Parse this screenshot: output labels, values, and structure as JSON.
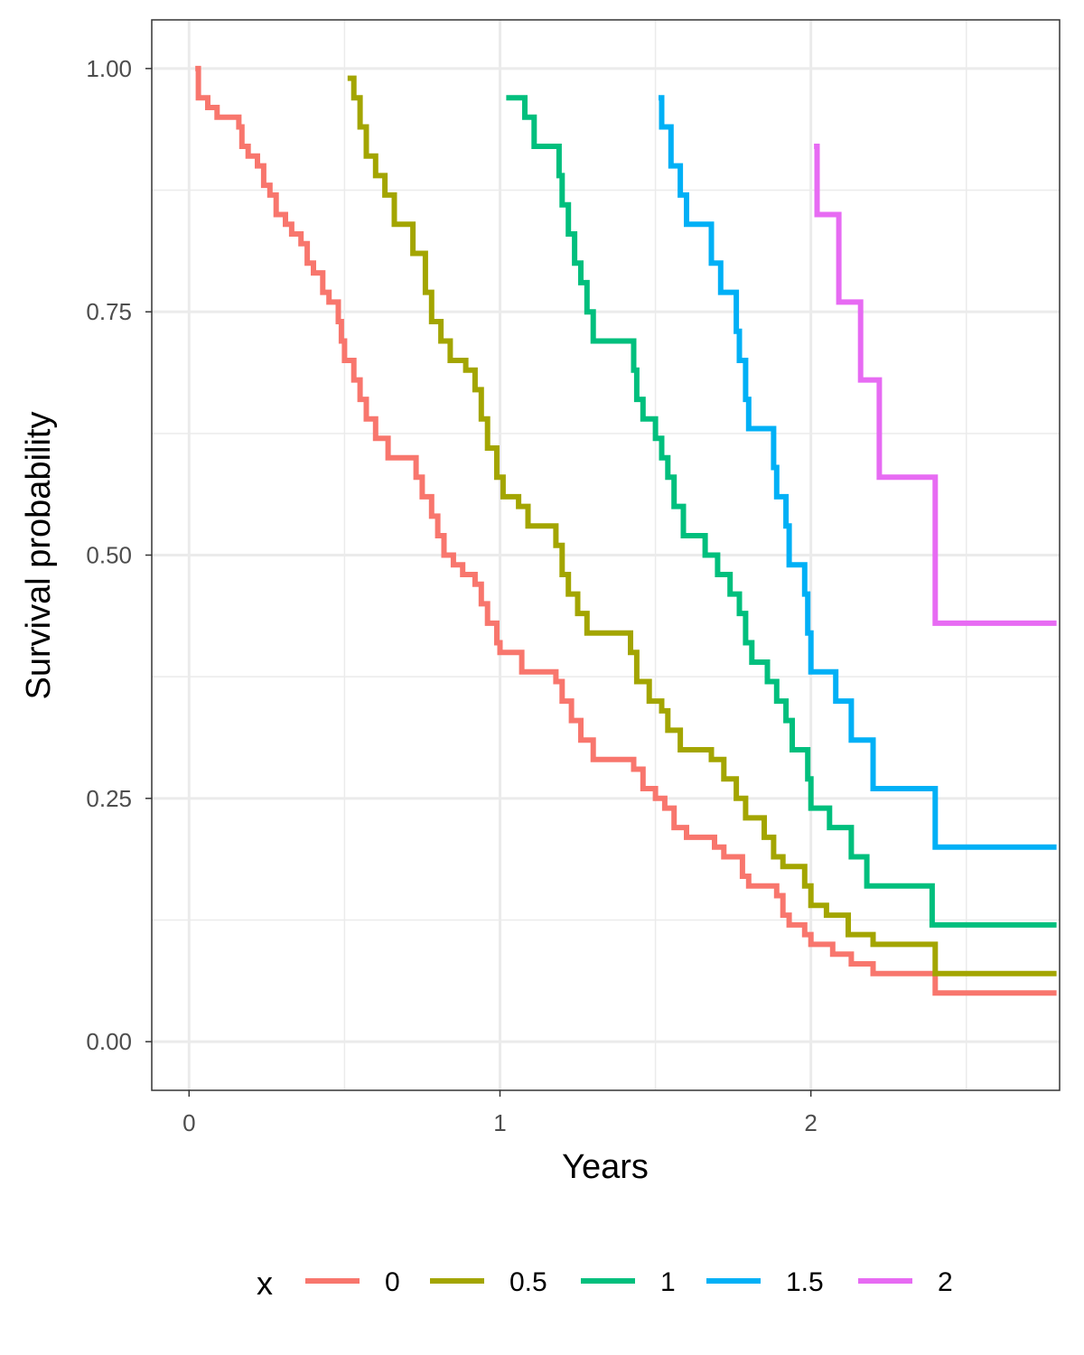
{
  "chart_data": {
    "type": "line",
    "step": true,
    "title": "",
    "xlabel": "Years",
    "ylabel": "Survival probability",
    "xlim": [
      -0.12,
      2.8
    ],
    "ylim": [
      -0.05,
      1.05
    ],
    "x_ticks": [
      0,
      1,
      2
    ],
    "x_tick_labels": [
      "0",
      "1",
      "2"
    ],
    "y_ticks": [
      0,
      0.25,
      0.5,
      0.75,
      1
    ],
    "y_tick_labels": [
      "0.00",
      "0.25",
      "0.50",
      "0.75",
      "1.00"
    ],
    "grid": true,
    "legend": {
      "title": "x",
      "position": "bottom"
    },
    "series": [
      {
        "name": "0",
        "color": "#F8766D",
        "points": [
          [
            0.02,
            1.0
          ],
          [
            0.03,
            0.97
          ],
          [
            0.06,
            0.96
          ],
          [
            0.09,
            0.95
          ],
          [
            0.16,
            0.94
          ],
          [
            0.17,
            0.92
          ],
          [
            0.19,
            0.91
          ],
          [
            0.22,
            0.9
          ],
          [
            0.24,
            0.88
          ],
          [
            0.26,
            0.87
          ],
          [
            0.28,
            0.85
          ],
          [
            0.31,
            0.84
          ],
          [
            0.33,
            0.83
          ],
          [
            0.36,
            0.82
          ],
          [
            0.38,
            0.8
          ],
          [
            0.4,
            0.79
          ],
          [
            0.43,
            0.77
          ],
          [
            0.45,
            0.76
          ],
          [
            0.48,
            0.74
          ],
          [
            0.49,
            0.72
          ],
          [
            0.5,
            0.7
          ],
          [
            0.53,
            0.68
          ],
          [
            0.55,
            0.66
          ],
          [
            0.57,
            0.64
          ],
          [
            0.6,
            0.62
          ],
          [
            0.64,
            0.6
          ],
          [
            0.67,
            0.6
          ],
          [
            0.73,
            0.58
          ],
          [
            0.75,
            0.56
          ],
          [
            0.78,
            0.54
          ],
          [
            0.8,
            0.52
          ],
          [
            0.82,
            0.5
          ],
          [
            0.85,
            0.49
          ],
          [
            0.88,
            0.48
          ],
          [
            0.92,
            0.47
          ],
          [
            0.94,
            0.45
          ],
          [
            0.96,
            0.43
          ],
          [
            0.99,
            0.41
          ],
          [
            1.0,
            0.4
          ],
          [
            1.07,
            0.38
          ],
          [
            1.18,
            0.37
          ],
          [
            1.2,
            0.35
          ],
          [
            1.23,
            0.33
          ],
          [
            1.26,
            0.31
          ],
          [
            1.3,
            0.29
          ],
          [
            1.43,
            0.28
          ],
          [
            1.46,
            0.26
          ],
          [
            1.5,
            0.25
          ],
          [
            1.53,
            0.24
          ],
          [
            1.56,
            0.22
          ],
          [
            1.6,
            0.21
          ],
          [
            1.69,
            0.2
          ],
          [
            1.72,
            0.19
          ],
          [
            1.78,
            0.17
          ],
          [
            1.8,
            0.16
          ],
          [
            1.89,
            0.15
          ],
          [
            1.91,
            0.13
          ],
          [
            1.93,
            0.12
          ],
          [
            1.98,
            0.11
          ],
          [
            2.0,
            0.1
          ],
          [
            2.07,
            0.09
          ],
          [
            2.13,
            0.08
          ],
          [
            2.2,
            0.07
          ],
          [
            2.4,
            0.05
          ],
          [
            2.79,
            0.05
          ]
        ]
      },
      {
        "name": "0.5",
        "color": "#A3A500",
        "points": [
          [
            0.51,
            0.99
          ],
          [
            0.53,
            0.97
          ],
          [
            0.55,
            0.94
          ],
          [
            0.57,
            0.91
          ],
          [
            0.6,
            0.89
          ],
          [
            0.63,
            0.87
          ],
          [
            0.66,
            0.84
          ],
          [
            0.72,
            0.81
          ],
          [
            0.76,
            0.77
          ],
          [
            0.78,
            0.74
          ],
          [
            0.81,
            0.72
          ],
          [
            0.84,
            0.7
          ],
          [
            0.89,
            0.69
          ],
          [
            0.92,
            0.67
          ],
          [
            0.94,
            0.64
          ],
          [
            0.96,
            0.61
          ],
          [
            0.99,
            0.58
          ],
          [
            1.01,
            0.56
          ],
          [
            1.06,
            0.55
          ],
          [
            1.09,
            0.53
          ],
          [
            1.18,
            0.51
          ],
          [
            1.2,
            0.48
          ],
          [
            1.22,
            0.46
          ],
          [
            1.25,
            0.44
          ],
          [
            1.28,
            0.42
          ],
          [
            1.42,
            0.4
          ],
          [
            1.44,
            0.37
          ],
          [
            1.48,
            0.35
          ],
          [
            1.52,
            0.34
          ],
          [
            1.54,
            0.32
          ],
          [
            1.58,
            0.3
          ],
          [
            1.68,
            0.29
          ],
          [
            1.72,
            0.27
          ],
          [
            1.76,
            0.25
          ],
          [
            1.79,
            0.23
          ],
          [
            1.85,
            0.21
          ],
          [
            1.88,
            0.19
          ],
          [
            1.91,
            0.18
          ],
          [
            1.98,
            0.16
          ],
          [
            2.0,
            0.14
          ],
          [
            2.05,
            0.13
          ],
          [
            2.12,
            0.11
          ],
          [
            2.2,
            0.1
          ],
          [
            2.4,
            0.07
          ],
          [
            2.79,
            0.07
          ]
        ]
      },
      {
        "name": "1",
        "color": "#00BF7D",
        "points": [
          [
            1.02,
            0.97
          ],
          [
            1.08,
            0.95
          ],
          [
            1.11,
            0.92
          ],
          [
            1.19,
            0.89
          ],
          [
            1.2,
            0.86
          ],
          [
            1.22,
            0.83
          ],
          [
            1.24,
            0.8
          ],
          [
            1.26,
            0.78
          ],
          [
            1.28,
            0.75
          ],
          [
            1.3,
            0.72
          ],
          [
            1.43,
            0.69
          ],
          [
            1.44,
            0.66
          ],
          [
            1.46,
            0.64
          ],
          [
            1.5,
            0.62
          ],
          [
            1.52,
            0.6
          ],
          [
            1.54,
            0.58
          ],
          [
            1.56,
            0.55
          ],
          [
            1.59,
            0.52
          ],
          [
            1.66,
            0.5
          ],
          [
            1.7,
            0.48
          ],
          [
            1.74,
            0.46
          ],
          [
            1.77,
            0.44
          ],
          [
            1.79,
            0.41
          ],
          [
            1.81,
            0.39
          ],
          [
            1.86,
            0.37
          ],
          [
            1.89,
            0.35
          ],
          [
            1.92,
            0.33
          ],
          [
            1.94,
            0.3
          ],
          [
            1.99,
            0.27
          ],
          [
            2.0,
            0.24
          ],
          [
            2.06,
            0.22
          ],
          [
            2.13,
            0.19
          ],
          [
            2.18,
            0.16
          ],
          [
            2.39,
            0.12
          ],
          [
            2.79,
            0.12
          ]
        ]
      },
      {
        "name": "1.5",
        "color": "#00B0F6",
        "points": [
          [
            1.51,
            0.97
          ],
          [
            1.52,
            0.94
          ],
          [
            1.55,
            0.9
          ],
          [
            1.58,
            0.87
          ],
          [
            1.6,
            0.84
          ],
          [
            1.68,
            0.8
          ],
          [
            1.71,
            0.77
          ],
          [
            1.76,
            0.73
          ],
          [
            1.77,
            0.7
          ],
          [
            1.79,
            0.66
          ],
          [
            1.8,
            0.63
          ],
          [
            1.88,
            0.59
          ],
          [
            1.89,
            0.56
          ],
          [
            1.92,
            0.53
          ],
          [
            1.93,
            0.49
          ],
          [
            1.98,
            0.46
          ],
          [
            1.99,
            0.42
          ],
          [
            2.0,
            0.38
          ],
          [
            2.08,
            0.35
          ],
          [
            2.13,
            0.31
          ],
          [
            2.2,
            0.26
          ],
          [
            2.4,
            0.2
          ],
          [
            2.79,
            0.2
          ]
        ]
      },
      {
        "name": "2",
        "color": "#E76BF3",
        "points": [
          [
            2.01,
            0.92
          ],
          [
            2.02,
            0.85
          ],
          [
            2.09,
            0.76
          ],
          [
            2.16,
            0.68
          ],
          [
            2.22,
            0.58
          ],
          [
            2.4,
            0.43
          ],
          [
            2.79,
            0.43
          ]
        ]
      }
    ]
  }
}
